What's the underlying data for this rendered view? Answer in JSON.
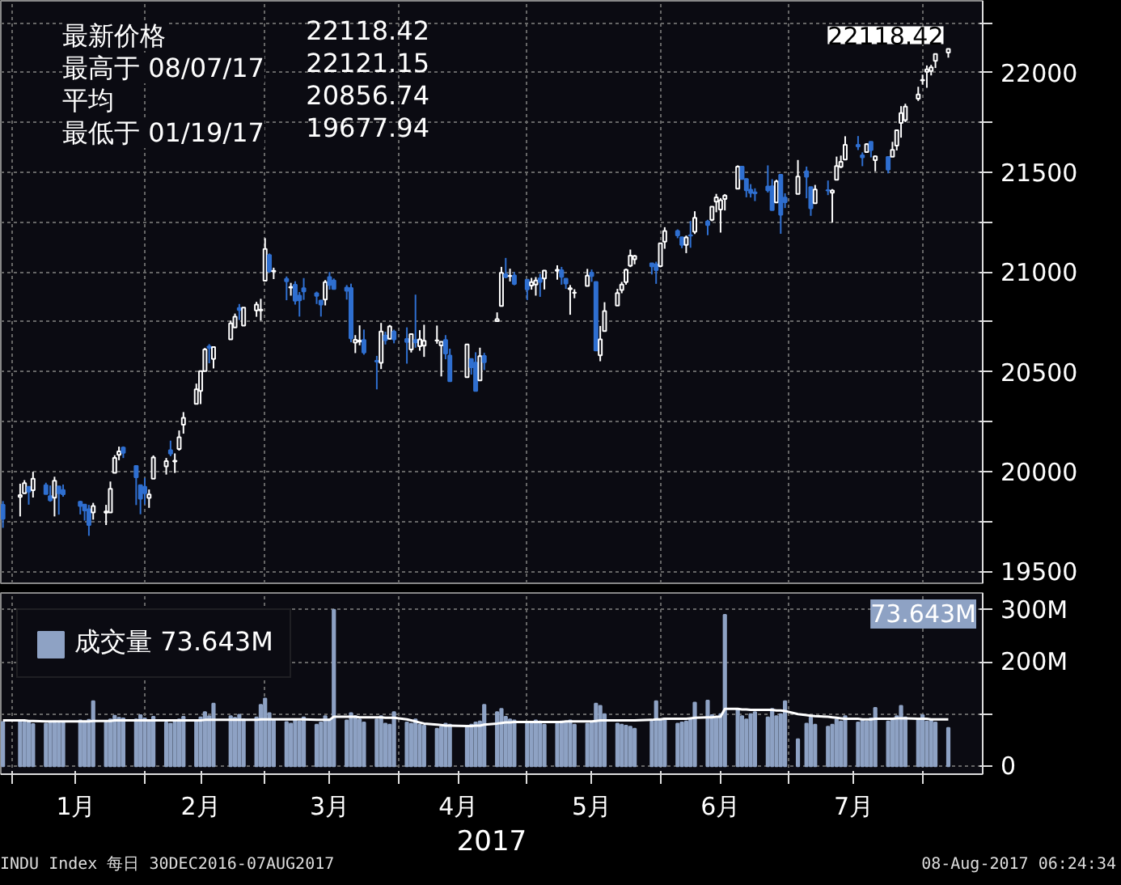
{
  "chart_data": [
    {
      "type": "candlestick",
      "tick_labels": "y",
      "grid": true,
      "xlim": [
        "2016-12-29T12:00",
        "2017-08-15"
      ],
      "xticks": [
        {
          "value": "2017-01-01",
          "label": null
        },
        {
          "value": "2017-02-01",
          "label": null
        },
        {
          "value": "2017-03-01",
          "label": null
        },
        {
          "value": "2017-04-01",
          "label": null
        },
        {
          "value": "2017-05-01",
          "label": null
        },
        {
          "value": "2017-06-01",
          "label": null
        },
        {
          "value": "2017-07-01",
          "label": null
        },
        {
          "value": "2017-08-01",
          "label": null
        }
      ],
      "ylim": [
        19440,
        22360
      ],
      "yticks": [
        19500,
        {
          "value": 19750,
          "label": null
        },
        20000,
        {
          "value": 20250,
          "label": null
        },
        20500,
        {
          "value": 20750,
          "label": null
        },
        21000,
        {
          "value": 21250,
          "label": null
        },
        21500,
        {
          "value": 21750,
          "label": null
        },
        22000,
        {
          "value": 22250,
          "label": null
        }
      ],
      "annotations": [
        "最新价格 22118.42",
        "最高于 08/07/17 22121.15",
        "平均 20856.74",
        "最低于 01/19/17 19677.94",
        {
          "text": "22118.42",
          "x": "2017-08-07",
          "y": 22118.42
        }
      ],
      "x": [
        "2016-12-30",
        "2017-01-03",
        "2017-01-04",
        "2017-01-05",
        "2017-01-06",
        "2017-01-09",
        "2017-01-10",
        "2017-01-11",
        "2017-01-12",
        "2017-01-13",
        "2017-01-17",
        "2017-01-18",
        "2017-01-19",
        "2017-01-20",
        "2017-01-23",
        "2017-01-24",
        "2017-01-25",
        "2017-01-26",
        "2017-01-27",
        "2017-01-30",
        "2017-01-31",
        "2017-02-01",
        "2017-02-02",
        "2017-02-03",
        "2017-02-06",
        "2017-02-07",
        "2017-02-08",
        "2017-02-09",
        "2017-02-10",
        "2017-02-13",
        "2017-02-14",
        "2017-02-15",
        "2017-02-16",
        "2017-02-17",
        "2017-02-21",
        "2017-02-22",
        "2017-02-23",
        "2017-02-24",
        "2017-02-27",
        "2017-02-28",
        "2017-03-01",
        "2017-03-02",
        "2017-03-03",
        "2017-03-06",
        "2017-03-07",
        "2017-03-08",
        "2017-03-09",
        "2017-03-10",
        "2017-03-13",
        "2017-03-14",
        "2017-03-15",
        "2017-03-16",
        "2017-03-17",
        "2017-03-20",
        "2017-03-21",
        "2017-03-22",
        "2017-03-23",
        "2017-03-24",
        "2017-03-27",
        "2017-03-28",
        "2017-03-29",
        "2017-03-30",
        "2017-03-31",
        "2017-04-03",
        "2017-04-04",
        "2017-04-05",
        "2017-04-06",
        "2017-04-07",
        "2017-04-10",
        "2017-04-11",
        "2017-04-12",
        "2017-04-13",
        "2017-04-17",
        "2017-04-18",
        "2017-04-19",
        "2017-04-20",
        "2017-04-21",
        "2017-04-24",
        "2017-04-25",
        "2017-04-26",
        "2017-04-27",
        "2017-04-28",
        "2017-05-01",
        "2017-05-02",
        "2017-05-03",
        "2017-05-04",
        "2017-05-05",
        "2017-05-08",
        "2017-05-09",
        "2017-05-10",
        "2017-05-11",
        "2017-05-12",
        "2017-05-15",
        "2017-05-16",
        "2017-05-17",
        "2017-05-18",
        "2017-05-19",
        "2017-05-22",
        "2017-05-23",
        "2017-05-24",
        "2017-05-25",
        "2017-05-26",
        "2017-05-30",
        "2017-05-31",
        "2017-06-01",
        "2017-06-02",
        "2017-06-05",
        "2017-06-06",
        "2017-06-07",
        "2017-06-08",
        "2017-06-09",
        "2017-06-12",
        "2017-06-13",
        "2017-06-14",
        "2017-06-15",
        "2017-06-16",
        "2017-06-19",
        "2017-06-20",
        "2017-06-21",
        "2017-06-22",
        "2017-06-23",
        "2017-06-26",
        "2017-06-27",
        "2017-06-28",
        "2017-06-29",
        "2017-06-30",
        "2017-07-03",
        "2017-07-05",
        "2017-07-06",
        "2017-07-07",
        "2017-07-10",
        "2017-07-11",
        "2017-07-12",
        "2017-07-13",
        "2017-07-14",
        "2017-07-17",
        "2017-07-18",
        "2017-07-19",
        "2017-07-20",
        "2017-07-21",
        "2017-07-24",
        "2017-07-25",
        "2017-07-26",
        "2017-07-27",
        "2017-07-28",
        "2017-07-31",
        "2017-08-01",
        "2017-08-02",
        "2017-08-03",
        "2017-08-04",
        "2017-08-07"
      ],
      "ohlc": [
        [
          19833,
          19852,
          19718,
          19763
        ],
        [
          19873,
          19939,
          19775,
          19882
        ],
        [
          19891,
          19957,
          19891,
          19942
        ],
        [
          19924,
          19924,
          19834,
          19899
        ],
        [
          19906,
          19999,
          19870,
          19964
        ],
        [
          19932,
          19944,
          19887,
          19887
        ],
        [
          19877,
          19930,
          19849,
          19856
        ],
        [
          19869,
          19974,
          19775,
          19954
        ],
        [
          19926,
          19926,
          19784,
          19891
        ],
        [
          19907,
          19935,
          19874,
          19886
        ],
        [
          19849,
          19853,
          19785,
          19827
        ],
        [
          19834,
          19834,
          19754,
          19805
        ],
        [
          19811,
          19833,
          19677.94,
          19732
        ],
        [
          19795,
          19843,
          19759,
          19827
        ],
        [
          19794,
          19833,
          19732,
          19800
        ],
        [
          19795,
          19950,
          19795,
          19913
        ],
        [
          19994,
          20082,
          19994,
          20069
        ],
        [
          20084,
          20125,
          20057,
          20101
        ],
        [
          20120,
          20126,
          20068,
          20094
        ],
        [
          20028,
          20028,
          19832,
          19971
        ],
        [
          19932,
          19933,
          19786,
          19864
        ],
        [
          19924,
          19968,
          19835,
          19891
        ],
        [
          19868,
          19910,
          19818,
          19885
        ],
        [
          19964,
          20081,
          19964,
          20071
        ],
        [
          20026,
          20068,
          19985,
          20052
        ],
        [
          20107,
          20155,
          20077,
          20090
        ],
        [
          20050,
          20091,
          19993,
          20054
        ],
        [
          20113,
          20206,
          20105,
          20172
        ],
        [
          20235,
          20298,
          20190,
          20269
        ],
        [
          20339,
          20441,
          20339,
          20412
        ],
        [
          20404,
          20504,
          20338,
          20504
        ],
        [
          20504,
          20620,
          20504,
          20612
        ],
        [
          20627,
          20639,
          20543,
          20620
        ],
        [
          20564,
          20624,
          20517,
          20624
        ],
        [
          20663,
          20757,
          20663,
          20743
        ],
        [
          20723,
          20792,
          20723,
          20776
        ],
        [
          20820,
          20840,
          20760,
          20810
        ],
        [
          20732,
          20822,
          20732,
          20822
        ],
        [
          20808,
          20851,
          20776,
          20837
        ],
        [
          20808,
          20866,
          20757,
          20812
        ],
        [
          20957,
          21170,
          20957,
          21116
        ],
        [
          21086,
          21093,
          20997,
          21003
        ],
        [
          21003,
          21022,
          20965,
          21006
        ],
        [
          20966,
          20978,
          20859,
          20954
        ],
        [
          20922,
          20946,
          20882,
          20925
        ],
        [
          20936,
          20954,
          20837,
          20856
        ],
        [
          20882,
          20900,
          20777,
          20858
        ],
        [
          20919,
          20970,
          20861,
          20903
        ],
        [
          20894,
          20902,
          20840,
          20881
        ],
        [
          20857,
          20860,
          20777,
          20837
        ],
        [
          20862,
          20960,
          20833,
          20950
        ],
        [
          20975,
          21000,
          20912,
          20935
        ],
        [
          20958,
          20968,
          20912,
          20915
        ],
        [
          20922,
          20935,
          20862,
          20906
        ],
        [
          20920,
          20942,
          20648,
          20668
        ],
        [
          20647,
          20684,
          20594,
          20661
        ],
        [
          20652,
          20733,
          20633,
          20657
        ],
        [
          20660,
          20712,
          20586,
          20597
        ],
        [
          20555,
          20580,
          20412,
          20551
        ],
        [
          20545,
          20745,
          20514,
          20702
        ],
        [
          20682,
          20701,
          20637,
          20659
        ],
        [
          20666,
          20735,
          20662,
          20728
        ],
        [
          20701,
          20711,
          20643,
          20663
        ],
        [
          20665,
          20723,
          20541,
          20650
        ],
        [
          20612,
          20689,
          20597,
          20689
        ],
        [
          20660,
          20887,
          20621,
          20648
        ],
        [
          20628,
          20709,
          20606,
          20663
        ],
        [
          20631,
          20736,
          20575,
          20656
        ],
        [
          20657,
          20732,
          20641,
          20658
        ],
        [
          20632,
          20651,
          20477,
          20651
        ],
        [
          20660,
          20684,
          20563,
          20592
        ],
        [
          20582,
          20616,
          20453,
          20453
        ],
        [
          20473,
          20638,
          20473,
          20637
        ],
        [
          20564,
          20564,
          20486,
          20523
        ],
        [
          20546,
          20598,
          20404,
          20404
        ],
        [
          20457,
          20621,
          20457,
          20579
        ],
        [
          20580,
          20595,
          20509,
          20548
        ],
        [
          20754,
          20798,
          20754,
          20764
        ],
        [
          20830,
          21026,
          20830,
          20996
        ],
        [
          20989,
          21071,
          20969,
          20975
        ],
        [
          20980,
          21017,
          20953,
          20981
        ],
        [
          20983,
          21000,
          20934,
          20941
        ],
        [
          20962,
          20962,
          20860,
          20913
        ],
        [
          20932,
          20971,
          20912,
          20950
        ],
        [
          20938,
          20975,
          20882,
          20958
        ],
        [
          20969,
          20991,
          20876,
          20951
        ],
        [
          20968,
          21010,
          20913,
          21007
        ],
        [
          21006,
          21034,
          20962,
          21012
        ],
        [
          21010,
          21026,
          20937,
          20976
        ],
        [
          20967,
          20967,
          20916,
          20943
        ],
        [
          20914,
          20935,
          20786,
          20919
        ],
        [
          20896,
          20914,
          20869,
          20897
        ],
        [
          20930,
          21016,
          20930,
          20982
        ],
        [
          20997,
          21013,
          20951,
          20980
        ],
        [
          20951,
          20951,
          20606,
          20607
        ],
        [
          20583,
          20730,
          20553,
          20663
        ],
        [
          20704,
          20849,
          20704,
          20805
        ],
        [
          20832,
          20916,
          20832,
          20895
        ],
        [
          20910,
          20951,
          20894,
          20938
        ],
        [
          20950,
          21017,
          20937,
          21012
        ],
        [
          21032,
          21113,
          21025,
          21083
        ],
        [
          21064,
          21086,
          21039,
          21080
        ],
        [
          21044,
          21044,
          20988,
          21029
        ],
        [
          21039,
          21052,
          20941,
          21009
        ],
        [
          21030,
          21144,
          21024,
          21144
        ],
        [
          21152,
          21225,
          21117,
          21206
        ],
        [
          21206,
          21214,
          21170,
          21184
        ],
        [
          21175,
          21176,
          21120,
          21136
        ],
        [
          21136,
          21183,
          21095,
          21174
        ],
        [
          21185,
          21256,
          21122,
          21183
        ],
        [
          21202,
          21305,
          21191,
          21272
        ],
        [
          21254,
          21262,
          21185,
          21236
        ],
        [
          21262,
          21329,
          21255,
          21328
        ],
        [
          21353,
          21392,
          21300,
          21375
        ],
        [
          21314,
          21371,
          21198,
          21360
        ],
        [
          21366,
          21391,
          21309,
          21384
        ],
        [
          21418,
          21535,
          21418,
          21529
        ],
        [
          21529,
          21529,
          21463,
          21467
        ],
        [
          21467,
          21470,
          21375,
          21410
        ],
        [
          21413,
          21441,
          21374,
          21397
        ],
        [
          21400,
          21420,
          21356,
          21395
        ],
        [
          21429,
          21535,
          21399,
          21410
        ],
        [
          21430,
          21466,
          21309,
          21311
        ],
        [
          21349,
          21463,
          21349,
          21455
        ],
        [
          21488,
          21488,
          21192,
          21287
        ],
        [
          21373,
          21395,
          21321,
          21350
        ],
        [
          21392,
          21562,
          21392,
          21479
        ],
        [
          21505,
          21529,
          21370,
          21478
        ],
        [
          21426,
          21426,
          21282,
          21320
        ],
        [
          21345,
          21437,
          21345,
          21414
        ],
        [
          21411,
          21459,
          21386,
          21409
        ],
        [
          21398,
          21416,
          21248,
          21409
        ],
        [
          21463,
          21579,
          21463,
          21532
        ],
        [
          21528,
          21584,
          21521,
          21553
        ],
        [
          21564,
          21681,
          21564,
          21638
        ],
        [
          21638,
          21682,
          21612,
          21630
        ],
        [
          21585,
          21600,
          21531,
          21575
        ],
        [
          21602,
          21646,
          21598,
          21641
        ],
        [
          21653,
          21653,
          21575,
          21612
        ],
        [
          21561,
          21584,
          21505,
          21580
        ],
        [
          21577,
          21577,
          21495,
          21513
        ],
        [
          21578,
          21653,
          21578,
          21613
        ],
        [
          21634,
          21711,
          21610,
          21711
        ],
        [
          21748,
          21832,
          21674,
          21797
        ],
        [
          21762,
          21844,
          21752,
          21830
        ],
        [
          21869,
          21929,
          21858,
          21891
        ],
        [
          21961,
          21990,
          21940,
          21964
        ],
        [
          22004,
          22036,
          21924,
          22016
        ],
        [
          22008,
          22039,
          21986,
          22026
        ],
        [
          22059,
          22093,
          22023,
          22093
        ],
        [
          22100,
          22121.15,
          22075,
          22118.42
        ]
      ]
    },
    {
      "type": "bar",
      "grid": true,
      "legend": "top left",
      "xlabel": "2017",
      "xlim": [
        "2016-12-29T12:00",
        "2017-08-15"
      ],
      "xticks": [
        {
          "value": "2017-01-01",
          "label": null
        },
        {
          "value": "2017-01-16",
          "label": "1月"
        },
        {
          "value": "2017-02-01",
          "label": null
        },
        {
          "value": "2017-02-14",
          "label": "2月"
        },
        {
          "value": "2017-03-01",
          "label": null
        },
        {
          "value": "2017-03-16",
          "label": "3月"
        },
        {
          "value": "2017-04-01",
          "label": null
        },
        {
          "value": "2017-04-15",
          "label": "4月"
        },
        {
          "value": "2017-05-01",
          "label": null
        },
        {
          "value": "2017-05-16",
          "label": "5月"
        },
        {
          "value": "2017-06-01",
          "label": null
        },
        {
          "value": "2017-06-15",
          "label": "6月"
        },
        {
          "value": "2017-07-01",
          "label": null
        },
        {
          "value": "2017-07-16",
          "label": "7月"
        },
        {
          "value": "2017-08-01",
          "label": null
        }
      ],
      "ylim": [
        -15,
        332
      ],
      "yticks": [
        0,
        {
          "value": 100,
          "label": null
        },
        {
          "value": 200,
          "label": "200M"
        },
        {
          "value": 300,
          "label": "300M"
        }
      ],
      "annotations": [
        "INDU Index 每日 30DEC2016-07AUG2017",
        "08-Aug-2017 06:24:34",
        "73.643M"
      ],
      "x": [
        "2016-12-30",
        "2017-01-03",
        "2017-01-04",
        "2017-01-05",
        "2017-01-06",
        "2017-01-09",
        "2017-01-10",
        "2017-01-11",
        "2017-01-12",
        "2017-01-13",
        "2017-01-17",
        "2017-01-18",
        "2017-01-19",
        "2017-01-20",
        "2017-01-23",
        "2017-01-24",
        "2017-01-25",
        "2017-01-26",
        "2017-01-27",
        "2017-01-30",
        "2017-01-31",
        "2017-02-01",
        "2017-02-02",
        "2017-02-03",
        "2017-02-06",
        "2017-02-07",
        "2017-02-08",
        "2017-02-09",
        "2017-02-10",
        "2017-02-13",
        "2017-02-14",
        "2017-02-15",
        "2017-02-16",
        "2017-02-17",
        "2017-02-21",
        "2017-02-22",
        "2017-02-23",
        "2017-02-24",
        "2017-02-27",
        "2017-02-28",
        "2017-03-01",
        "2017-03-02",
        "2017-03-03",
        "2017-03-06",
        "2017-03-07",
        "2017-03-08",
        "2017-03-09",
        "2017-03-10",
        "2017-03-13",
        "2017-03-14",
        "2017-03-15",
        "2017-03-16",
        "2017-03-17",
        "2017-03-20",
        "2017-03-21",
        "2017-03-22",
        "2017-03-23",
        "2017-03-24",
        "2017-03-27",
        "2017-03-28",
        "2017-03-29",
        "2017-03-30",
        "2017-03-31",
        "2017-04-03",
        "2017-04-04",
        "2017-04-05",
        "2017-04-06",
        "2017-04-07",
        "2017-04-10",
        "2017-04-11",
        "2017-04-12",
        "2017-04-13",
        "2017-04-17",
        "2017-04-18",
        "2017-04-19",
        "2017-04-20",
        "2017-04-21",
        "2017-04-24",
        "2017-04-25",
        "2017-04-26",
        "2017-04-27",
        "2017-04-28",
        "2017-05-01",
        "2017-05-02",
        "2017-05-03",
        "2017-05-04",
        "2017-05-05",
        "2017-05-08",
        "2017-05-09",
        "2017-05-10",
        "2017-05-11",
        "2017-05-12",
        "2017-05-15",
        "2017-05-16",
        "2017-05-17",
        "2017-05-18",
        "2017-05-19",
        "2017-05-22",
        "2017-05-23",
        "2017-05-24",
        "2017-05-25",
        "2017-05-26",
        "2017-05-30",
        "2017-05-31",
        "2017-06-01",
        "2017-06-02",
        "2017-06-05",
        "2017-06-06",
        "2017-06-07",
        "2017-06-08",
        "2017-06-09",
        "2017-06-12",
        "2017-06-13",
        "2017-06-14",
        "2017-06-15",
        "2017-06-16",
        "2017-06-19",
        "2017-06-20",
        "2017-06-21",
        "2017-06-22",
        "2017-06-23",
        "2017-06-26",
        "2017-06-27",
        "2017-06-28",
        "2017-06-29",
        "2017-06-30",
        "2017-07-03",
        "2017-07-05",
        "2017-07-06",
        "2017-07-07",
        "2017-07-10",
        "2017-07-11",
        "2017-07-12",
        "2017-07-13",
        "2017-07-14",
        "2017-07-17",
        "2017-07-18",
        "2017-07-19",
        "2017-07-20",
        "2017-07-21",
        "2017-07-24",
        "2017-07-25",
        "2017-07-26",
        "2017-07-27",
        "2017-07-28",
        "2017-07-31",
        "2017-08-01",
        "2017-08-02",
        "2017-08-03",
        "2017-08-04",
        "2017-08-07"
      ],
      "series": [
        {
          "name": "成交量 73.643M",
          "color": "#8ea2c4",
          "values": [
            85,
            86,
            84,
            85,
            81,
            82,
            84,
            86,
            83,
            85,
            88,
            86,
            89,
            125,
            84,
            90,
            97,
            93,
            92,
            90,
            98,
            92,
            88,
            95,
            84,
            82,
            85,
            90,
            95,
            88,
            94,
            104,
            96,
            120,
            96,
            93,
            99,
            90,
            94,
            118,
            130,
            102,
            88,
            85,
            82,
            90,
            86,
            94,
            80,
            84,
            96,
            90,
            300,
            88,
            102,
            96,
            90,
            84,
            90,
            96,
            82,
            80,
            104,
            84,
            82,
            90,
            80,
            78,
            72,
            76,
            82,
            80,
            76,
            80,
            84,
            86,
            118,
            104,
            110,
            95,
            90,
            88,
            82,
            84,
            88,
            86,
            80,
            82,
            86,
            84,
            88,
            80,
            82,
            84,
            120,
            116,
            100,
            82,
            80,
            78,
            76,
            72,
            86,
            125,
            88,
            92,
            82,
            84,
            86,
            90,
            122,
            126,
            98,
            94,
            100,
            290,
            110,
            96,
            90,
            100,
            104,
            94,
            110,
            96,
            100,
            125,
            52,
            82,
            94,
            80,
            76,
            80,
            90,
            86,
            96,
            84,
            88,
            86,
            92,
            112,
            86,
            92,
            96,
            116,
            94,
            90,
            98,
            86,
            88,
            84,
            73.643
          ]
        },
        {
          "type": "line",
          "color": "#ffffff",
          "values": [
            88,
            88,
            88,
            87,
            87,
            86,
            86,
            86,
            86,
            86,
            86,
            86,
            86,
            87,
            87,
            87,
            88,
            88,
            88,
            88,
            88,
            88,
            88,
            88,
            88,
            88,
            88,
            88,
            88,
            88,
            88,
            89,
            89,
            89,
            89,
            89,
            89,
            89,
            89,
            90,
            90,
            90,
            90,
            90,
            90,
            90,
            90,
            90,
            89,
            89,
            89,
            89,
            95,
            95,
            95,
            95,
            94,
            94,
            94,
            94,
            93,
            93,
            93,
            90,
            88,
            86,
            84,
            82,
            80,
            79,
            78,
            78,
            77,
            77,
            78,
            78,
            80,
            82,
            83,
            84,
            84,
            85,
            85,
            85,
            85,
            85,
            85,
            85,
            85,
            86,
            86,
            86,
            86,
            86,
            87,
            88,
            88,
            88,
            88,
            88,
            88,
            88,
            89,
            90,
            90,
            91,
            91,
            91,
            91,
            92,
            93,
            94,
            94,
            95,
            95,
            110,
            110,
            109,
            109,
            108,
            108,
            108,
            108,
            107,
            107,
            106,
            100,
            98,
            97,
            96,
            95,
            94,
            93,
            92,
            91,
            91,
            90,
            90,
            90,
            91,
            91,
            91,
            92,
            92,
            92,
            91,
            91,
            91,
            90,
            90,
            90
          ]
        }
      ]
    }
  ]
}
